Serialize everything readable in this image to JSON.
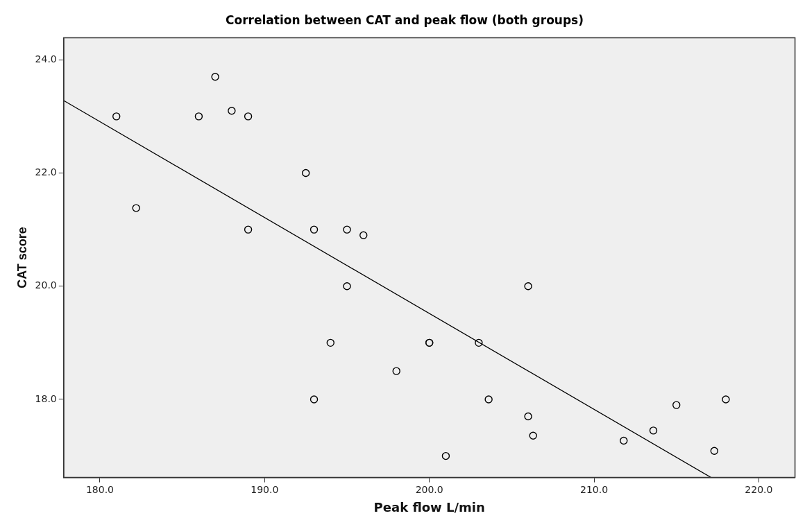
{
  "chart_data": {
    "type": "scatter",
    "title": "Correlation between CAT and peak flow (both groups)",
    "xlabel": "Peak flow L/min",
    "ylabel": "CAT score",
    "xlim": [
      177.8,
      222.2
    ],
    "ylim": [
      16.62,
      24.39
    ],
    "xticks": [
      {
        "value": 180,
        "label": "180.0"
      },
      {
        "value": 190,
        "label": "190.0"
      },
      {
        "value": 200,
        "label": "200.0"
      },
      {
        "value": 210,
        "label": "210.0"
      },
      {
        "value": 220,
        "label": "220.0"
      }
    ],
    "yticks": [
      {
        "value": 18,
        "label": "18.0"
      },
      {
        "value": 20,
        "label": "20.0"
      },
      {
        "value": 22,
        "label": "22.0"
      },
      {
        "value": 24,
        "label": "24.0"
      }
    ],
    "grid": false,
    "legend": false,
    "marker": "circle",
    "series": [
      {
        "type": "scatter",
        "color": "#000000",
        "x": [
          181.0,
          182.2,
          187.0,
          186.0,
          188.0,
          189.0,
          192.5,
          189.0,
          193.0,
          195.0,
          196.0,
          195.0,
          194.0,
          193.0,
          198.0,
          200.0,
          200.0,
          203.0,
          203.6,
          206.0,
          206.0,
          206.3,
          201.0,
          211.8,
          213.6,
          215.0,
          217.3,
          218.0
        ],
        "values": [
          23.0,
          21.38,
          23.7,
          23.0,
          23.1,
          23.0,
          22.0,
          21.0,
          21.0,
          21.0,
          20.9,
          20.0,
          19.0,
          18.0,
          18.5,
          19.0,
          19.0,
          19.0,
          18.0,
          20.0,
          17.7,
          17.36,
          17.0,
          17.27,
          17.45,
          17.9,
          17.09,
          18.0
        ]
      },
      {
        "type": "line",
        "color": "#000000",
        "x": [
          177.8,
          217.1
        ],
        "values": [
          23.28,
          16.62
        ],
        "marker": "none"
      }
    ]
  }
}
